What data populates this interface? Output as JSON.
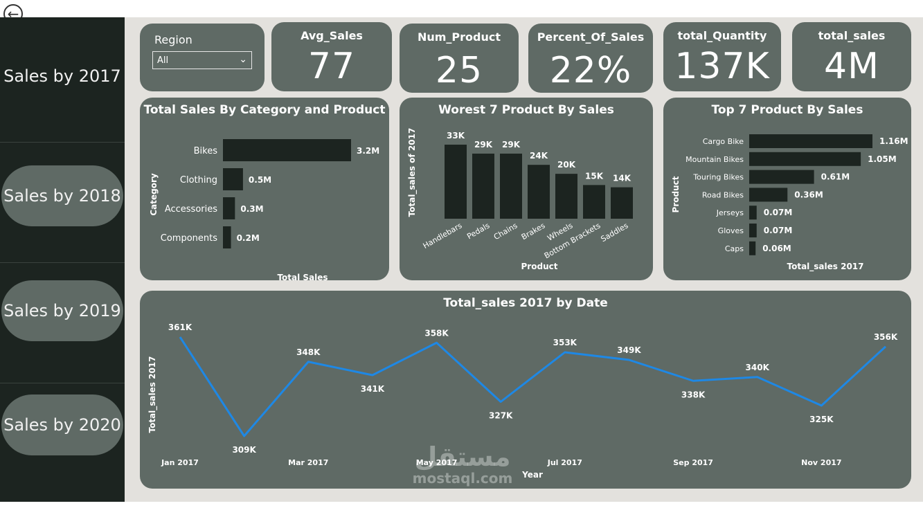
{
  "nav": {
    "items": [
      {
        "label": "Sales by 2017",
        "active": true
      },
      {
        "label": "Sales by 2018"
      },
      {
        "label": "Sales by 2019"
      },
      {
        "label": "Sales by 2020"
      }
    ]
  },
  "filter": {
    "label": "Region",
    "value": "All"
  },
  "kpis": {
    "avg_sales": {
      "title": "Avg_Sales",
      "value": "77"
    },
    "num_product": {
      "title": "Num_Product",
      "value": "25"
    },
    "percent_of_sales": {
      "title": "Percent_Of_Sales",
      "value": "22%"
    },
    "total_quantity": {
      "title": "total_Quantity",
      "value": "137K"
    },
    "total_sales": {
      "title": "total_sales",
      "value": "4M"
    }
  },
  "watermark": {
    "arabic": "مستقل",
    "latin": "mostaql.com"
  },
  "colors": {
    "dark_bar": "#1c2420",
    "line": "#1e88e5",
    "card": "#5f6a65"
  },
  "chart_data": [
    {
      "type": "bar",
      "orientation": "horizontal",
      "title": "Total Sales By Category and Product",
      "xlabel": "Total Sales",
      "ylabel": "Category",
      "categories": [
        "Bikes",
        "Clothing",
        "Accessories",
        "Components"
      ],
      "values": [
        3.2,
        0.5,
        0.3,
        0.2
      ],
      "labels": [
        "3.2M",
        "0.5M",
        "0.3M",
        "0.2M"
      ]
    },
    {
      "type": "bar",
      "orientation": "vertical",
      "title": "Worest 7 Product By Sales",
      "xlabel": "Product",
      "ylabel": "Total_sales of 2017",
      "categories": [
        "Handlebars",
        "Pedals",
        "Chains",
        "Brakes",
        "Wheels",
        "Bottom Brackets",
        "Saddles"
      ],
      "values": [
        33,
        29,
        29,
        24,
        20,
        15,
        14
      ],
      "labels": [
        "33K",
        "29K",
        "29K",
        "24K",
        "20K",
        "15K",
        "14K"
      ]
    },
    {
      "type": "bar",
      "orientation": "horizontal",
      "title": "Top 7 Product By Sales",
      "xlabel": "Total_sales 2017",
      "ylabel": "Product",
      "categories": [
        "Cargo Bike",
        "Mountain Bikes",
        "Touring Bikes",
        "Road Bikes",
        "Jerseys",
        "Gloves",
        "Caps"
      ],
      "values": [
        1.16,
        1.05,
        0.61,
        0.36,
        0.07,
        0.07,
        0.06
      ],
      "labels": [
        "1.16M",
        "1.05M",
        "0.61M",
        "0.36M",
        "0.07M",
        "0.07M",
        "0.06M"
      ]
    },
    {
      "type": "line",
      "title": "Total_sales 2017 by Date",
      "xlabel": "Year",
      "ylabel": "Total_sales 2017",
      "x": [
        "Jan 2017",
        "Feb 2017",
        "Mar 2017",
        "Apr 2017",
        "May 2017",
        "Jun 2017",
        "Jul 2017",
        "Aug 2017",
        "Sep 2017",
        "Oct 2017",
        "Nov 2017",
        "Dec 2017"
      ],
      "tick_labels": [
        "Jan 2017",
        "Mar 2017",
        "May 2017",
        "Jul 2017",
        "Sep 2017",
        "Nov 2017"
      ],
      "values": [
        361,
        309,
        348,
        341,
        358,
        327,
        353,
        349,
        338,
        340,
        325,
        356
      ],
      "labels": [
        "361K",
        "309K",
        "348K",
        "341K",
        "358K",
        "327K",
        "353K",
        "349K",
        "338K",
        "340K",
        "325K",
        "356K"
      ]
    }
  ]
}
